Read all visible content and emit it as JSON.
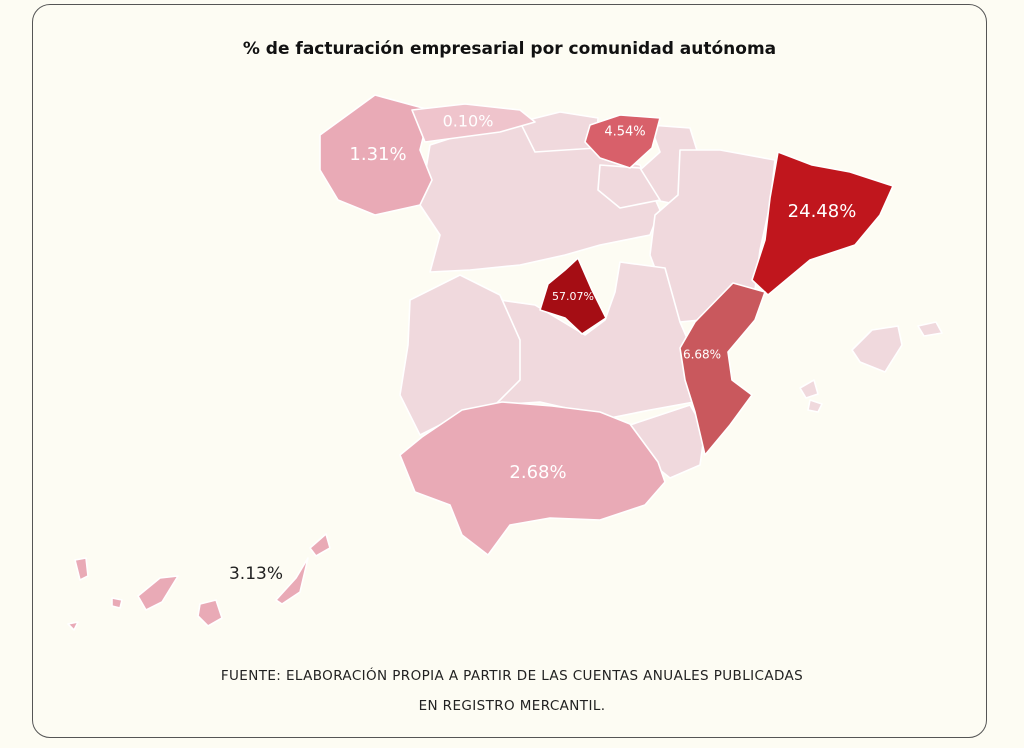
{
  "title": "% de facturación empresarial por comunidad autónoma",
  "regions": {
    "galicia": {
      "value": "1.31%",
      "fill": "#e9aab6"
    },
    "asturias": {
      "value": "0.10%",
      "fill": "#efc4cc"
    },
    "pais_vasco": {
      "value": "4.54%",
      "fill": "#d8606a"
    },
    "cataluna": {
      "value": "24.48%",
      "fill": "#c0161d"
    },
    "madrid": {
      "value": "57.07%",
      "fill": "#a50d14"
    },
    "valencia": {
      "value": "6.68%",
      "fill": "#c9585d"
    },
    "andalucia": {
      "value": "2.68%",
      "fill": "#e9aab6"
    },
    "canarias": {
      "value": "3.13%",
      "fill": "#e9aab6"
    },
    "others": {
      "fill": "#f0d9dd"
    }
  },
  "source": {
    "line1": "FUENTE: ELABORACIÓN PROPIA A PARTIR DE LAS CUENTAS ANUALES PUBLICADAS",
    "line2": "EN REGISTRO MERCANTIL."
  }
}
